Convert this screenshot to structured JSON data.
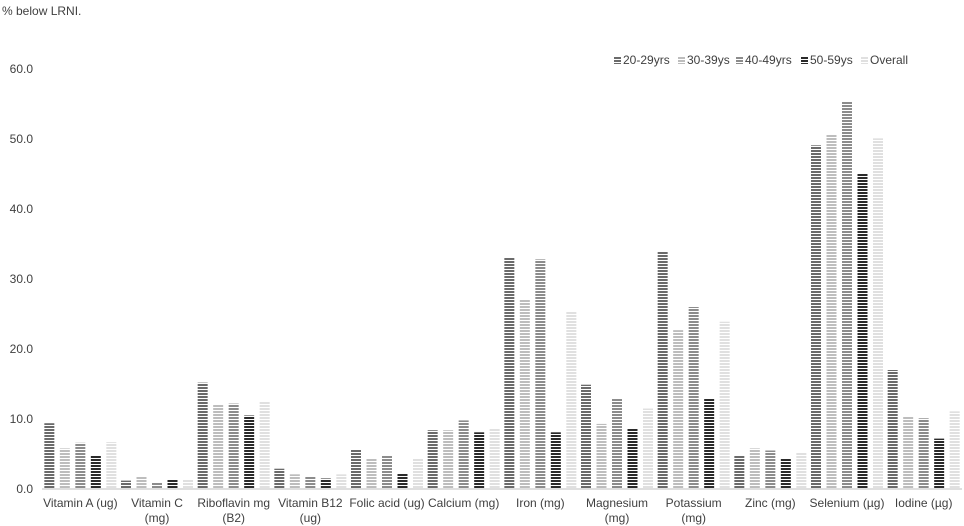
{
  "chart_data": {
    "type": "bar",
    "title": "",
    "ylabel": "% below LRNI.",
    "xlabel": "",
    "ylim": [
      0,
      60
    ],
    "yticks": [
      "0.0",
      "10.0",
      "20.0",
      "30.0",
      "40.0",
      "50.0",
      "60.0"
    ],
    "grid": false,
    "legend_position": "top-right",
    "categories": [
      [
        "Vitamin A (ug)"
      ],
      [
        "Vitamin C",
        "(mg)"
      ],
      [
        "Riboflavin mg",
        "(B2)"
      ],
      [
        "Vitamin B12",
        "(ug)"
      ],
      [
        "Folic acid (ug)"
      ],
      [
        "Calcium (mg)"
      ],
      [
        "Iron (mg)"
      ],
      [
        "Magnesium",
        "(mg)"
      ],
      [
        "Potassium",
        "(mg)"
      ],
      [
        "Zinc (mg)"
      ],
      [
        "Selenium (µg)"
      ],
      [
        "Iodine (µg)"
      ]
    ],
    "series": [
      {
        "name": "20-29yrs",
        "color": "#6b6b6b",
        "values": [
          9.4,
          1.2,
          15.2,
          2.9,
          5.6,
          8.4,
          33.1,
          14.9,
          34.0,
          4.8,
          49.1,
          17.0
        ]
      },
      {
        "name": "30-39ys",
        "color": "#bdbdbd",
        "values": [
          5.8,
          1.8,
          12.1,
          2.1,
          4.4,
          8.4,
          27.0,
          9.3,
          22.7,
          5.8,
          50.6,
          10.4
        ]
      },
      {
        "name": "40-49yrs",
        "color": "#8c8c8c",
        "values": [
          6.6,
          0.9,
          12.2,
          1.8,
          4.8,
          9.8,
          32.8,
          13.0,
          26.0,
          5.5,
          55.3,
          10.1
        ]
      },
      {
        "name": "50-59ys",
        "color": "#2a2a2a",
        "values": [
          4.8,
          1.3,
          10.5,
          1.5,
          2.2,
          8.1,
          8.1,
          8.6,
          13.0,
          4.4,
          45.1,
          7.2
        ]
      },
      {
        "name": "Overall",
        "color": "#e0e0e0",
        "values": [
          6.7,
          1.3,
          12.5,
          2.1,
          4.3,
          8.7,
          25.3,
          11.5,
          23.9,
          5.2,
          50.1,
          11.1
        ]
      }
    ]
  }
}
